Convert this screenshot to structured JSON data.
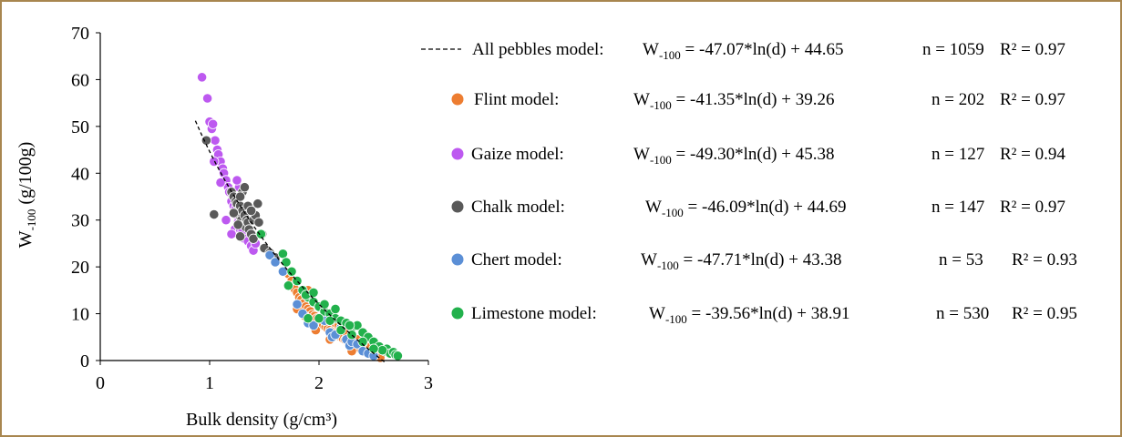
{
  "chart_data": {
    "type": "scatter",
    "xlabel": "Bulk density (g/cm³)",
    "ylabel": "W",
    "ylabel_sub": "-100",
    "ylabel_unit": " (g/100g)",
    "xlim": [
      0,
      3
    ],
    "ylim": [
      0,
      70
    ],
    "x_ticks": [
      0,
      1,
      2,
      3
    ],
    "y_ticks": [
      0,
      10,
      20,
      30,
      40,
      50,
      60,
      70
    ],
    "grid": false,
    "legend_position": "right",
    "equation_prefix": "W",
    "equation_sub": "-100",
    "series": [
      {
        "name": "All pebbles model:",
        "kind": "line",
        "color": "#000000",
        "dashed": true,
        "equation": " = -47.07*ln(d)  + 44.65",
        "n": "n = 1059",
        "r2": "R² = 0.97",
        "model": {
          "a": -47.07,
          "b": 44.65,
          "xrange": [
            0.87,
            2.6
          ]
        }
      },
      {
        "name": "Flint model:",
        "kind": "points",
        "color": "#ed7d31",
        "equation": " = -41.35*ln(d)  + 39.26",
        "n": "n = 202",
        "r2": "R² = 0.97",
        "model": {
          "a": -41.35,
          "b": 39.26
        },
        "points": [
          [
            1.72,
            18.5
          ],
          [
            1.75,
            17
          ],
          [
            1.77,
            16
          ],
          [
            1.78,
            15.2
          ],
          [
            1.8,
            14.5
          ],
          [
            1.82,
            13.5
          ],
          [
            1.84,
            13
          ],
          [
            1.86,
            12.2
          ],
          [
            1.88,
            11.5
          ],
          [
            1.9,
            11
          ],
          [
            1.92,
            10.5
          ],
          [
            1.94,
            9.8
          ],
          [
            1.96,
            9.5
          ],
          [
            1.98,
            9
          ],
          [
            2.0,
            8.5
          ],
          [
            2.02,
            8
          ],
          [
            2.04,
            7.5
          ],
          [
            2.06,
            7.2
          ],
          [
            2.08,
            6.8
          ],
          [
            2.1,
            6.5
          ],
          [
            2.12,
            6.2
          ],
          [
            2.14,
            5.8
          ],
          [
            2.16,
            5.5
          ],
          [
            2.18,
            5.2
          ],
          [
            2.2,
            5
          ],
          [
            2.22,
            4.7
          ],
          [
            2.24,
            4.4
          ],
          [
            2.26,
            4.1
          ],
          [
            2.28,
            3.8
          ],
          [
            2.3,
            3.5
          ],
          [
            2.32,
            3.2
          ],
          [
            2.34,
            3
          ],
          [
            2.36,
            2.7
          ],
          [
            2.38,
            2.5
          ],
          [
            2.4,
            2.2
          ],
          [
            2.42,
            2
          ],
          [
            2.44,
            1.8
          ],
          [
            2.46,
            1.5
          ],
          [
            2.48,
            1.3
          ],
          [
            2.5,
            1.1
          ],
          [
            2.52,
            1
          ],
          [
            2.54,
            0.8
          ],
          [
            2.56,
            0.6
          ],
          [
            1.9,
            15
          ],
          [
            1.95,
            12.5
          ],
          [
            2.05,
            10
          ],
          [
            2.15,
            8
          ],
          [
            2.25,
            6
          ],
          [
            2.35,
            4.5
          ],
          [
            1.8,
            11
          ],
          [
            1.97,
            6.5
          ],
          [
            2.1,
            4.5
          ],
          [
            2.3,
            2
          ],
          [
            2.45,
            2.8
          ],
          [
            2.0,
            11.5
          ],
          [
            1.87,
            9.5
          ],
          [
            2.18,
            7.5
          ],
          [
            2.4,
            3.8
          ]
        ]
      },
      {
        "name": "Gaize model:",
        "kind": "points",
        "color": "#bd59f0",
        "equation": " = -49.30*ln(d)  + 45.38",
        "n": "n = 127",
        "r2": "R² = 0.94",
        "model": {
          "a": -49.3,
          "b": 45.38
        },
        "points": [
          [
            0.93,
            60.5
          ],
          [
            0.98,
            56
          ],
          [
            1.0,
            51
          ],
          [
            1.02,
            49.5
          ],
          [
            1.03,
            50.5
          ],
          [
            1.05,
            47
          ],
          [
            1.07,
            45
          ],
          [
            1.08,
            44
          ],
          [
            1.1,
            42.5
          ],
          [
            1.04,
            42.5
          ],
          [
            1.12,
            41
          ],
          [
            1.13,
            40
          ],
          [
            1.15,
            38.5
          ],
          [
            1.17,
            37
          ],
          [
            1.18,
            36
          ],
          [
            1.2,
            34
          ],
          [
            1.22,
            33
          ],
          [
            1.24,
            32.5
          ],
          [
            1.25,
            31
          ],
          [
            1.26,
            29.5
          ],
          [
            1.23,
            28
          ],
          [
            1.28,
            28
          ],
          [
            1.3,
            27.5
          ],
          [
            1.32,
            26
          ],
          [
            1.35,
            25.5
          ],
          [
            1.38,
            24.5
          ],
          [
            1.4,
            23.5
          ],
          [
            1.42,
            25
          ],
          [
            1.2,
            27
          ],
          [
            1.15,
            30
          ],
          [
            1.27,
            37
          ],
          [
            1.25,
            38.5
          ],
          [
            1.1,
            38
          ]
        ]
      },
      {
        "name": "Chalk model:",
        "kind": "points",
        "color": "#595959",
        "equation": " = -46.09*ln(d)  + 44.69",
        "n": "n = 147",
        "r2": "R² = 0.97",
        "model": {
          "a": -46.09,
          "b": 44.69
        },
        "points": [
          [
            0.97,
            47
          ],
          [
            1.04,
            31.2
          ],
          [
            1.2,
            36
          ],
          [
            1.22,
            35
          ],
          [
            1.24,
            34
          ],
          [
            1.25,
            33.5
          ],
          [
            1.26,
            32
          ],
          [
            1.27,
            31
          ],
          [
            1.28,
            33
          ],
          [
            1.29,
            30
          ],
          [
            1.3,
            32
          ],
          [
            1.31,
            29
          ],
          [
            1.32,
            31
          ],
          [
            1.33,
            28.5
          ],
          [
            1.34,
            30
          ],
          [
            1.35,
            29.5
          ],
          [
            1.36,
            28
          ],
          [
            1.38,
            27
          ],
          [
            1.4,
            30
          ],
          [
            1.42,
            31
          ],
          [
            1.44,
            33.5
          ],
          [
            1.45,
            29.5
          ],
          [
            1.48,
            27
          ],
          [
            1.3,
            36
          ],
          [
            1.32,
            37
          ],
          [
            1.22,
            31.5
          ],
          [
            1.26,
            29
          ],
          [
            1.28,
            26.5
          ],
          [
            1.35,
            33
          ],
          [
            1.38,
            32
          ],
          [
            1.4,
            26
          ],
          [
            1.5,
            24
          ],
          [
            1.55,
            23
          ],
          [
            1.6,
            22
          ],
          [
            1.28,
            35
          ]
        ]
      },
      {
        "name": "Chert model:",
        "kind": "points",
        "color": "#5b8fd6",
        "equation": " = -47.71*ln(d)  + 43.38",
        "n": "n = 53",
        "r2": "R² = 0.93",
        "model": {
          "a": -47.71,
          "b": 43.38
        },
        "points": [
          [
            1.55,
            22.5
          ],
          [
            1.6,
            21
          ],
          [
            1.67,
            19
          ],
          [
            1.8,
            12
          ],
          [
            1.85,
            10
          ],
          [
            1.9,
            8
          ],
          [
            1.95,
            7.5
          ],
          [
            2.0,
            9
          ],
          [
            2.05,
            8.5
          ],
          [
            2.1,
            6
          ],
          [
            2.12,
            5
          ],
          [
            2.15,
            5.5
          ],
          [
            2.2,
            7
          ],
          [
            2.25,
            4.5
          ],
          [
            2.28,
            3.2
          ],
          [
            2.3,
            4
          ],
          [
            2.35,
            3.5
          ],
          [
            2.4,
            2
          ],
          [
            2.45,
            1.5
          ],
          [
            2.5,
            1
          ]
        ]
      },
      {
        "name": "Limestone model:",
        "kind": "points",
        "color": "#22b14c",
        "equation": " = -39.56*ln(d)  + 38.91",
        "n": "n = 530",
        "r2": "R² =  0.95",
        "model": {
          "a": -39.56,
          "b": 38.91
        },
        "points": [
          [
            1.47,
            27
          ],
          [
            1.67,
            22.8
          ],
          [
            1.7,
            21
          ],
          [
            1.75,
            19
          ],
          [
            1.8,
            17
          ],
          [
            1.85,
            15
          ],
          [
            1.9,
            13.5
          ],
          [
            1.95,
            12.5
          ],
          [
            2.0,
            11.5
          ],
          [
            2.05,
            10.5
          ],
          [
            2.1,
            10
          ],
          [
            2.15,
            9
          ],
          [
            2.2,
            8.5
          ],
          [
            2.25,
            8
          ],
          [
            2.3,
            7
          ],
          [
            2.35,
            7.5
          ],
          [
            2.4,
            6
          ],
          [
            2.45,
            5
          ],
          [
            2.5,
            4
          ],
          [
            2.55,
            3
          ],
          [
            2.6,
            2
          ],
          [
            2.62,
            2.5
          ],
          [
            2.65,
            1.5
          ],
          [
            2.68,
            1.8
          ],
          [
            2.7,
            1.2
          ],
          [
            2.72,
            1
          ],
          [
            2.58,
            2.2
          ],
          [
            2.0,
            9
          ],
          [
            2.1,
            8.5
          ],
          [
            1.9,
            9
          ],
          [
            2.2,
            6.5
          ],
          [
            2.3,
            5.5
          ],
          [
            2.28,
            7.5
          ],
          [
            2.05,
            12
          ],
          [
            1.88,
            14
          ],
          [
            1.95,
            14.5
          ],
          [
            2.15,
            11
          ],
          [
            2.4,
            4
          ],
          [
            2.5,
            2.5
          ],
          [
            1.72,
            16
          ]
        ]
      }
    ]
  }
}
